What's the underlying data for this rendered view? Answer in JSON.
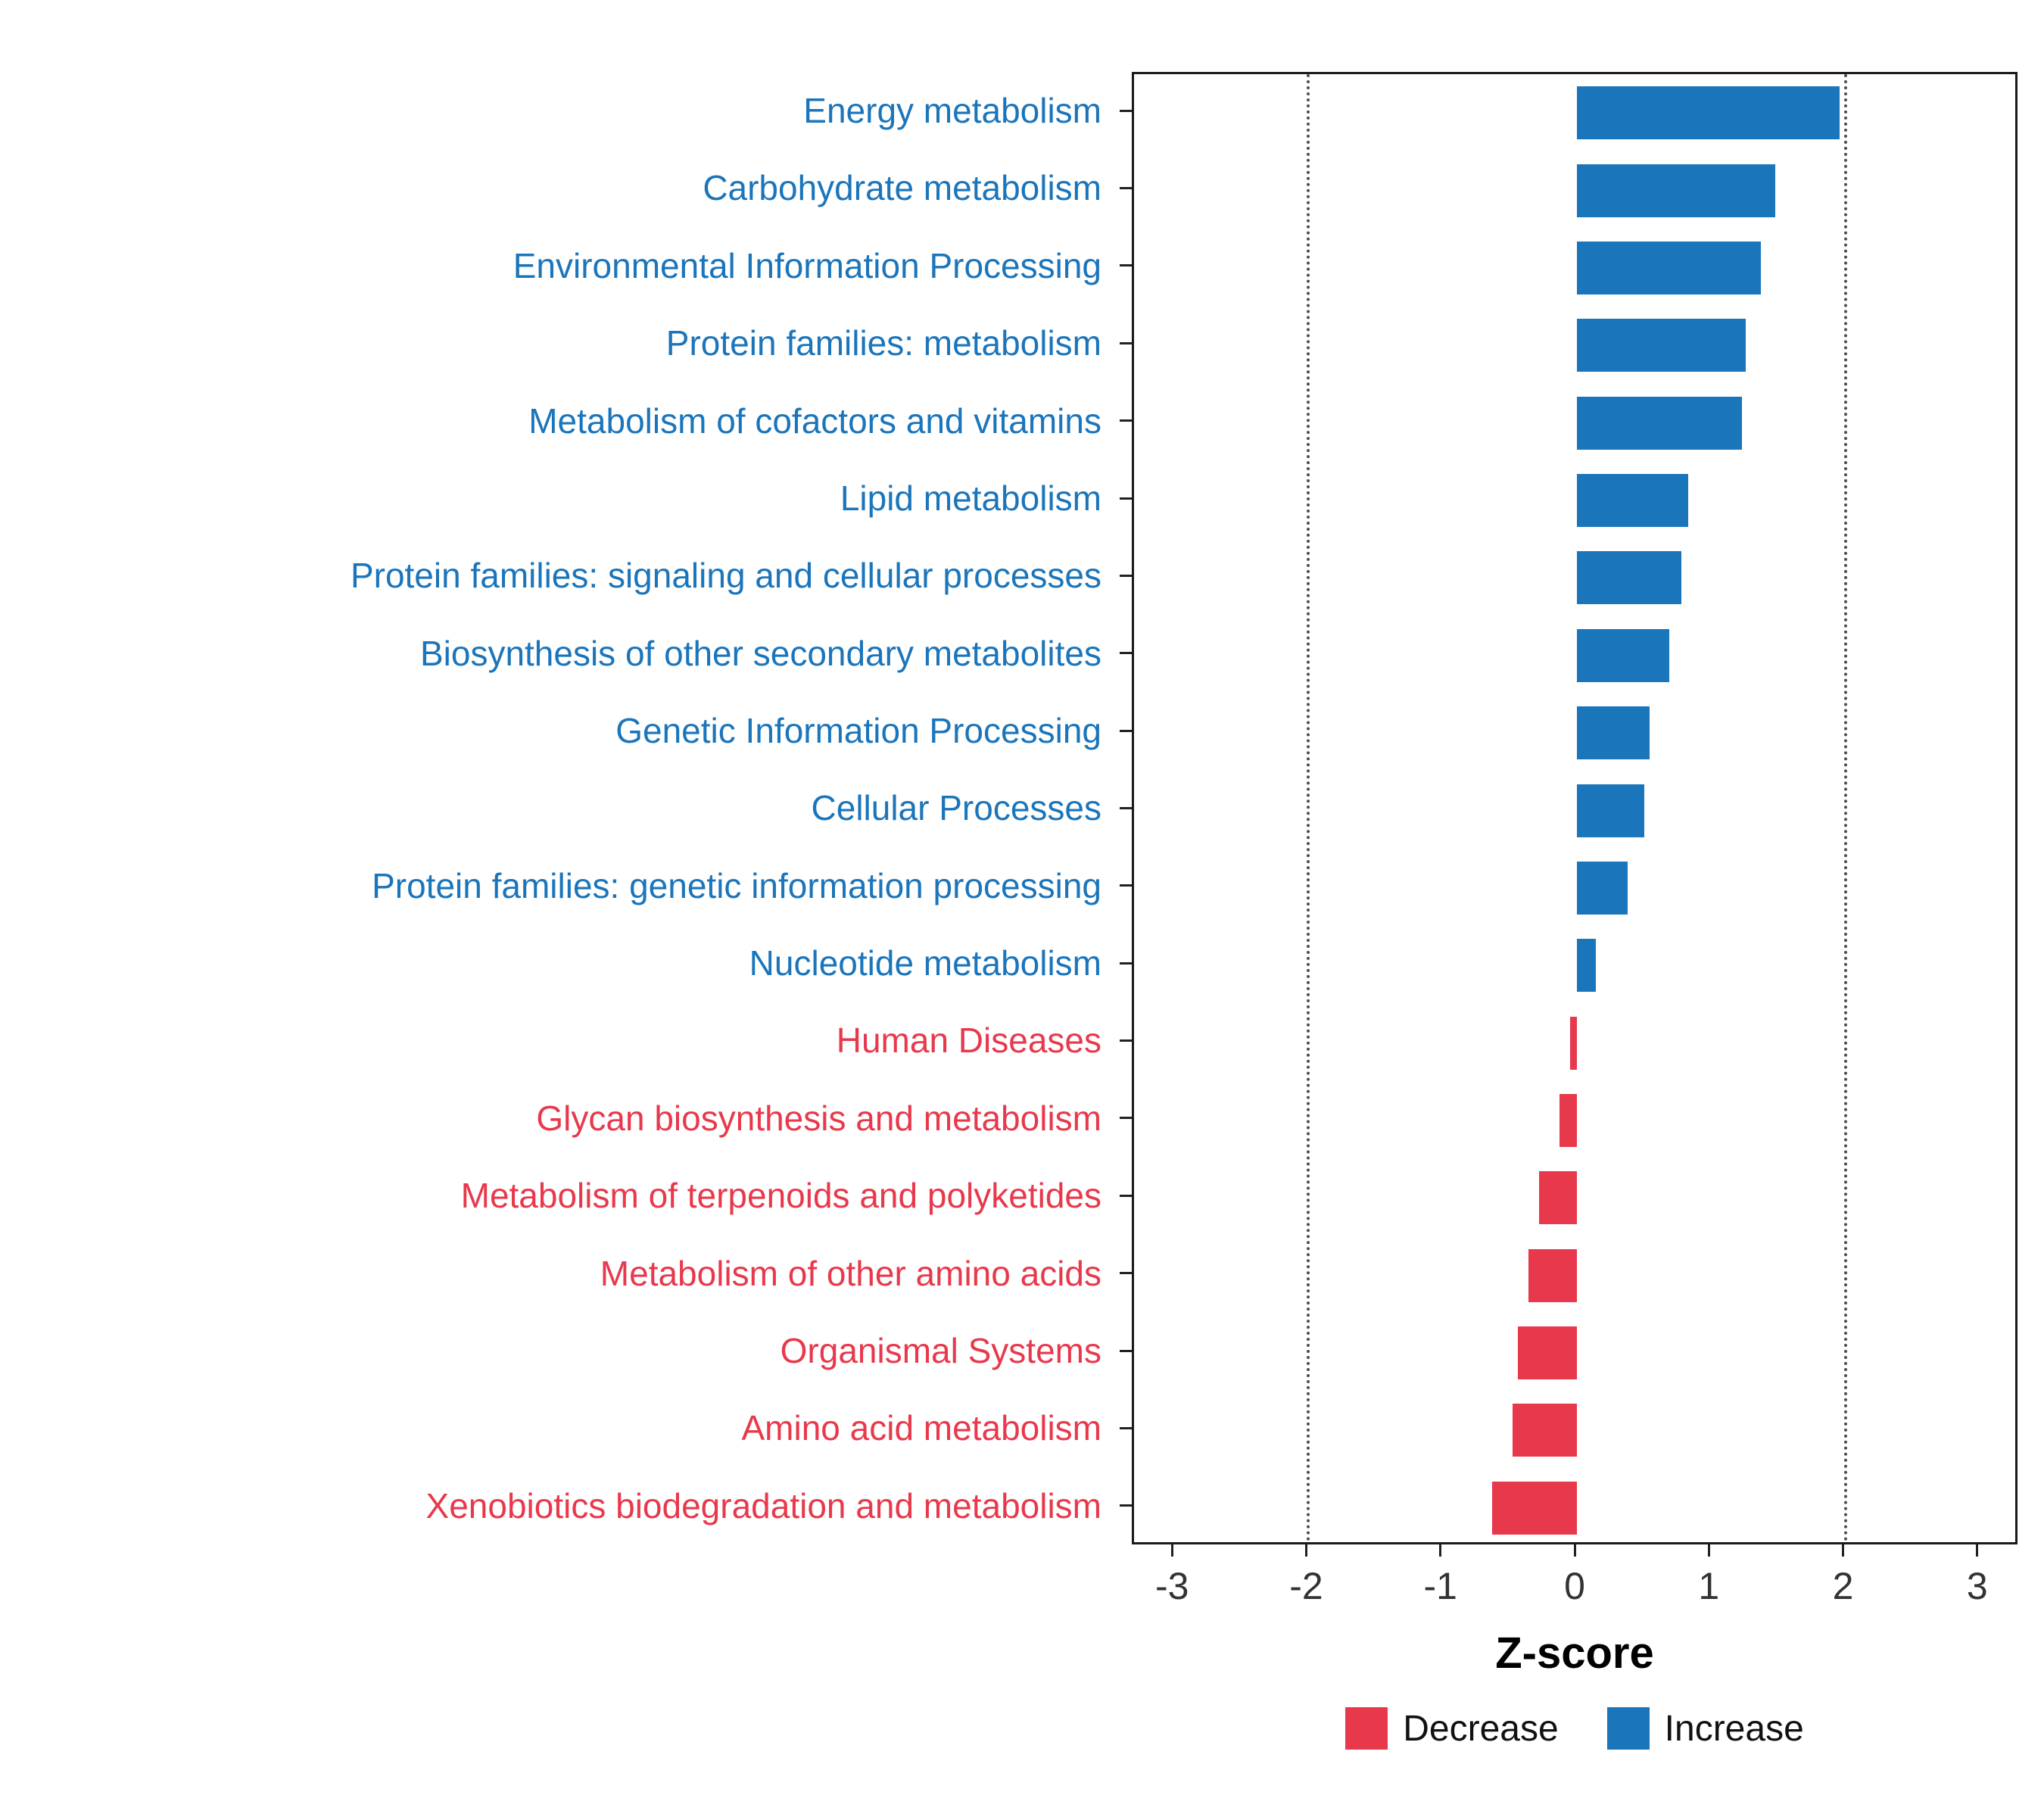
{
  "chart_data": {
    "type": "bar",
    "orientation": "horizontal",
    "title": "",
    "xlabel": "Z-score",
    "x_ticks": [
      -3,
      -2,
      -1,
      0,
      1,
      2,
      3
    ],
    "x_range": [
      -3.3,
      3.3
    ],
    "ref_lines": [
      -2,
      2
    ],
    "grid": false,
    "legend_position": "bottom",
    "categories": [
      {
        "label": "Energy metabolism",
        "value": 1.96,
        "direction": "increase"
      },
      {
        "label": "Carbohydrate metabolism",
        "value": 1.48,
        "direction": "increase"
      },
      {
        "label": "Environmental Information Processing",
        "value": 1.37,
        "direction": "increase"
      },
      {
        "label": "Protein families: metabolism",
        "value": 1.26,
        "direction": "increase"
      },
      {
        "label": "Metabolism of cofactors and vitamins",
        "value": 1.23,
        "direction": "increase"
      },
      {
        "label": "Lipid metabolism",
        "value": 0.83,
        "direction": "increase"
      },
      {
        "label": "Protein families: signaling and cellular processes",
        "value": 0.78,
        "direction": "increase"
      },
      {
        "label": "Biosynthesis of other secondary metabolites",
        "value": 0.69,
        "direction": "increase"
      },
      {
        "label": "Genetic Information Processing",
        "value": 0.54,
        "direction": "increase"
      },
      {
        "label": "Cellular Processes",
        "value": 0.5,
        "direction": "increase"
      },
      {
        "label": "Protein families: genetic information processing",
        "value": 0.38,
        "direction": "increase"
      },
      {
        "label": "Nucleotide metabolism",
        "value": 0.14,
        "direction": "increase"
      },
      {
        "label": "Human Diseases",
        "value": -0.05,
        "direction": "decrease"
      },
      {
        "label": "Glycan biosynthesis and metabolism",
        "value": -0.13,
        "direction": "decrease"
      },
      {
        "label": "Metabolism of terpenoids and polyketides",
        "value": -0.28,
        "direction": "decrease"
      },
      {
        "label": "Metabolism of other amino acids",
        "value": -0.36,
        "direction": "decrease"
      },
      {
        "label": "Organismal Systems",
        "value": -0.44,
        "direction": "decrease"
      },
      {
        "label": "Amino acid metabolism",
        "value": -0.48,
        "direction": "decrease"
      },
      {
        "label": "Xenobiotics biodegradation and metabolism",
        "value": -0.63,
        "direction": "decrease"
      }
    ],
    "colors": {
      "increase": "#1B75BB",
      "decrease": "#E8394C"
    },
    "legend": [
      {
        "label": "Decrease",
        "color": "#E8394C"
      },
      {
        "label": "Increase",
        "color": "#1B75BB"
      }
    ]
  }
}
